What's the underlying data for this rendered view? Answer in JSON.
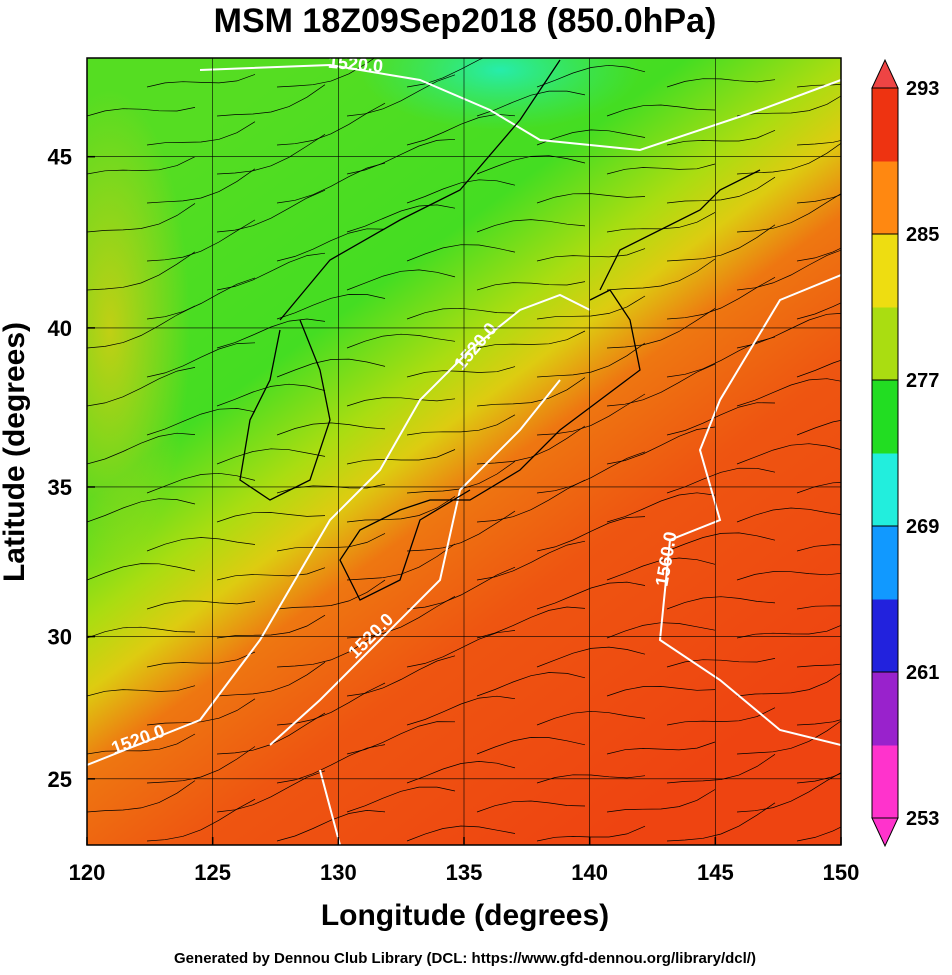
{
  "chart_data": {
    "type": "map",
    "title": "MSM 18Z09Sep2018 (850.0hPa)",
    "xlabel": "Longitude (degrees)",
    "ylabel": "Latitude  (degrees)",
    "projection": "mercator",
    "xlim": [
      120,
      150
    ],
    "xticks": [
      120,
      125,
      130,
      135,
      140,
      145,
      150
    ],
    "ylim": [
      22.6,
      47.7
    ],
    "yticks": [
      25,
      30,
      35,
      40,
      45
    ],
    "grid": true,
    "colorbar": {
      "lim": [
        253,
        293
      ],
      "ticks": [
        253,
        261,
        269,
        277,
        285,
        293
      ],
      "colors": [
        "#ff33cc",
        "#9922cc",
        "#2222dd",
        "#1199ff",
        "#22eedd",
        "#22dd22",
        "#aadd11",
        "#eedd11",
        "#ff8811",
        "#ee3311"
      ]
    },
    "contour_labels": [
      "1520.0",
      "1520.0",
      "1520.0",
      "1520.0",
      "1560.0"
    ],
    "footer": "Generated by Dennou Club Library (DCL: https://www.gfd-dennou.org/library/dcl/)"
  }
}
